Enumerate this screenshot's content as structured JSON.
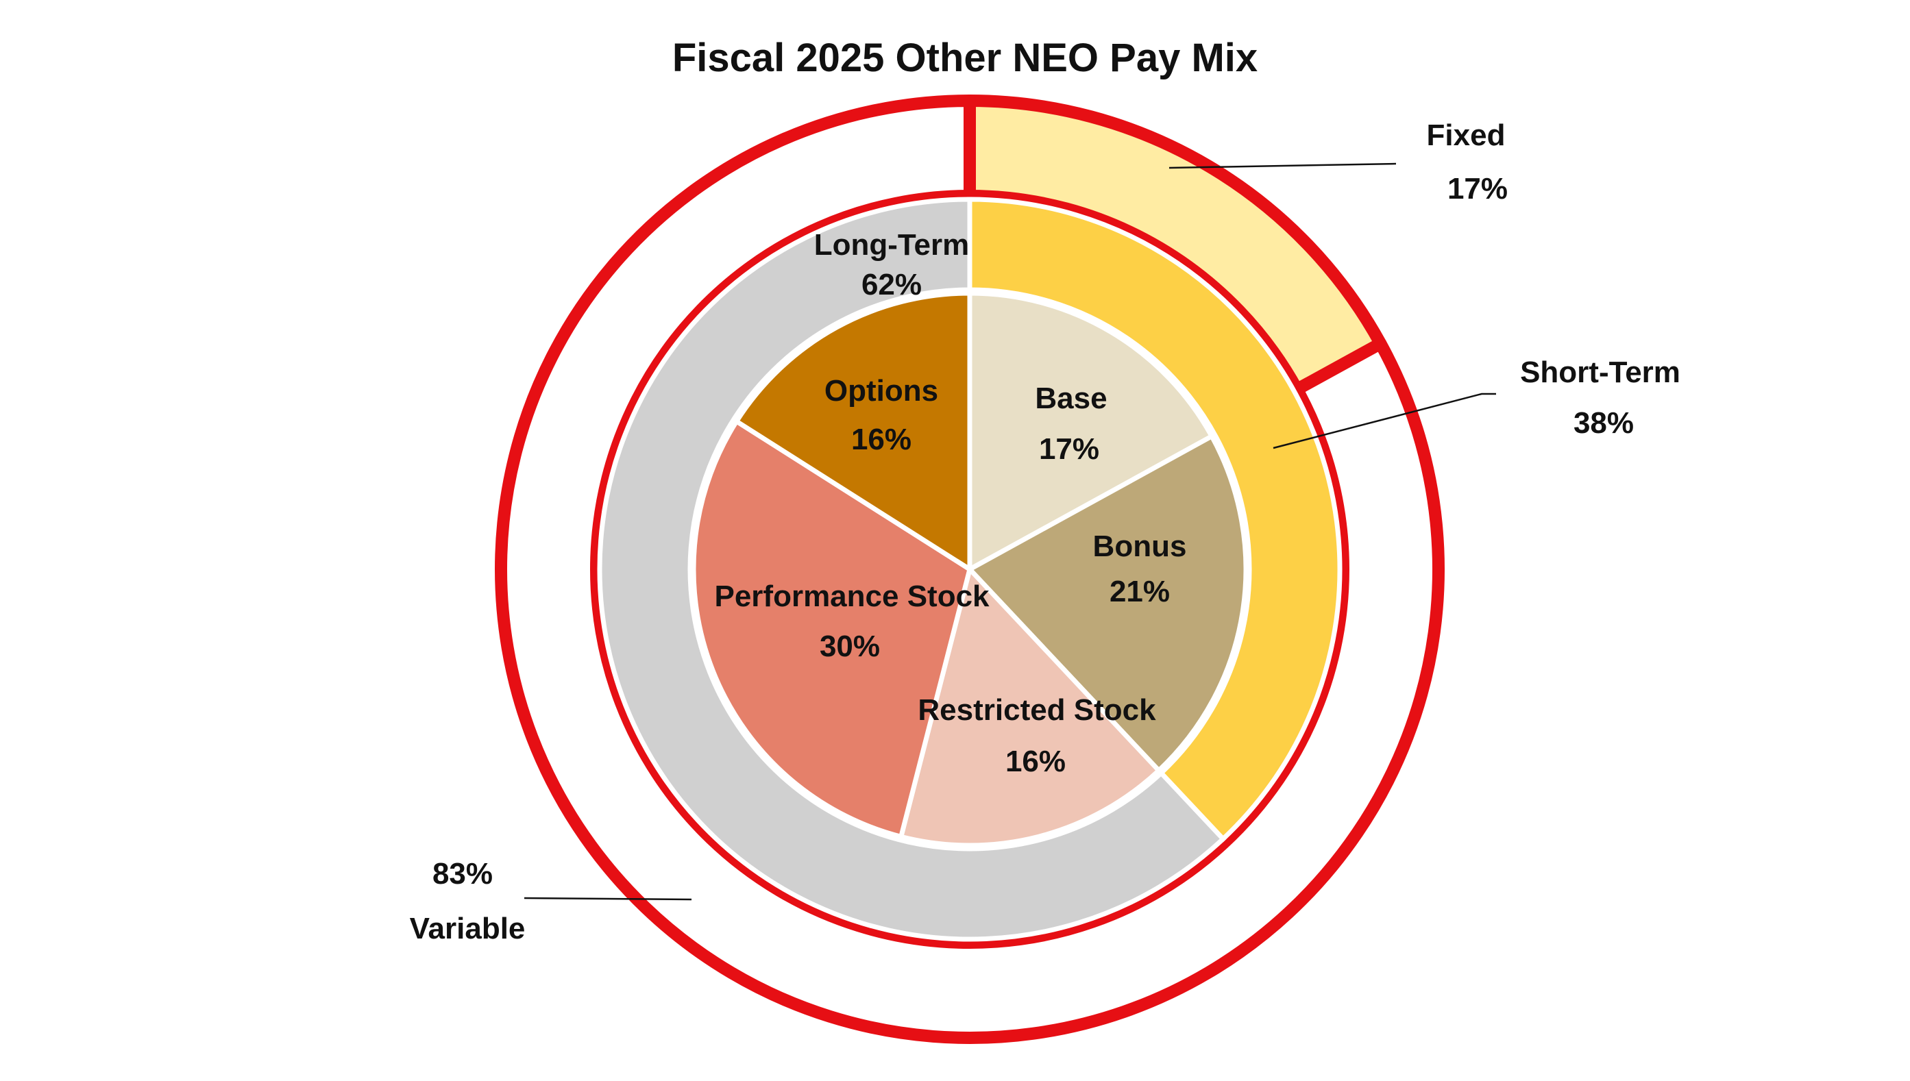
{
  "chart_data": {
    "type": "pie",
    "title": "Fiscal 2025 Other NEO Pay Mix",
    "rings": [
      {
        "level": "outer",
        "slices": [
          {
            "label": "Fixed",
            "value": 17,
            "value_label": "17%",
            "color": "#FFECA3"
          },
          {
            "label": "Variable",
            "value": 83,
            "value_label": "83%",
            "color": "#FFFFFF"
          }
        ],
        "outline_color": "#E60F14"
      },
      {
        "level": "middle",
        "slices": [
          {
            "label": "Short-Term",
            "value": 38,
            "value_label": "38%",
            "color": "#FDD046"
          },
          {
            "label": "Long-Term",
            "value": 62,
            "value_label": "62%",
            "color": "#D0D0D0"
          }
        ]
      },
      {
        "level": "inner",
        "slices": [
          {
            "label": "Base",
            "value": 17,
            "value_label": "17%",
            "color": "#E8DFC6"
          },
          {
            "label": "Bonus",
            "value": 21,
            "value_label": "21%",
            "color": "#BDA878"
          },
          {
            "label": "Restricted Stock",
            "value": 16,
            "value_label": "16%",
            "color": "#EFC5B5"
          },
          {
            "label": "Performance Stock",
            "value": 30,
            "value_label": "30%",
            "color": "#E5806A"
          },
          {
            "label": "Options",
            "value": 16,
            "value_label": "16%",
            "color": "#C47800"
          }
        ]
      }
    ]
  }
}
